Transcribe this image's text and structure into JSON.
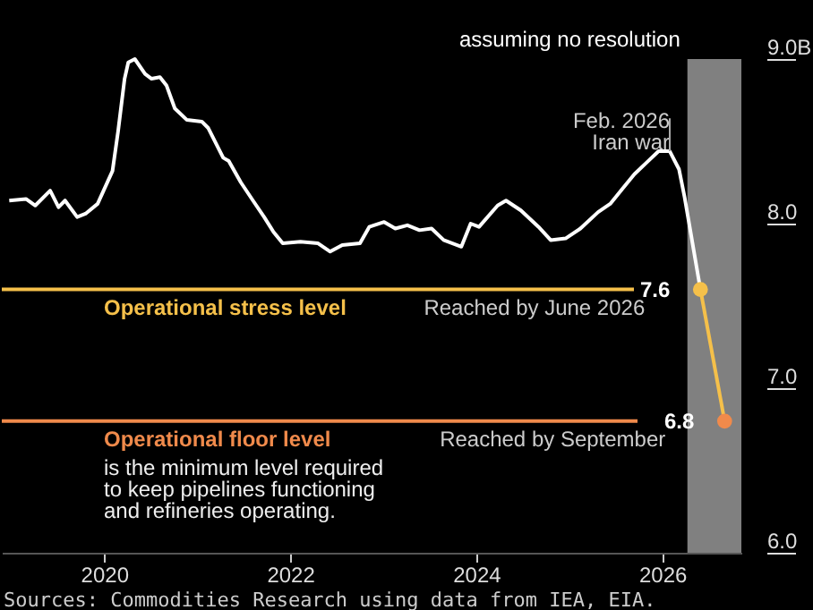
{
  "chart_data": {
    "type": "line",
    "series": [
      {
        "color": "#ffffff",
        "x": [
          2018.98,
          2019.16,
          2019.26,
          2019.42,
          2019.51,
          2019.58,
          2019.71,
          2019.8,
          2019.93,
          2020.09,
          2020.15,
          2020.22,
          2020.26,
          2020.33,
          2020.44,
          2020.51,
          2020.6,
          2020.67,
          2020.76,
          2020.89,
          2021.05,
          2021.12,
          2021.28,
          2021.34,
          2021.47,
          2021.6,
          2021.72,
          2021.82,
          2021.92,
          2022.11,
          2022.3,
          2022.43,
          2022.56,
          2022.75,
          2022.85,
          2023.01,
          2023.13,
          2023.26,
          2023.39,
          2023.52,
          2023.65,
          2023.84,
          2023.94,
          2024.03,
          2024.23,
          2024.32,
          2024.48,
          2024.67,
          2024.8,
          2024.96,
          2025.12,
          2025.31,
          2025.44,
          2025.57,
          2025.7,
          2025.83,
          2025.96,
          2026.08,
          2026.18,
          2026.24,
          2026.41
        ],
        "values": [
          8.14,
          8.15,
          8.11,
          8.2,
          8.1,
          8.14,
          8.04,
          8.06,
          8.12,
          8.32,
          8.56,
          8.88,
          8.98,
          9.0,
          8.91,
          8.88,
          8.89,
          8.84,
          8.7,
          8.63,
          8.62,
          8.58,
          8.4,
          8.38,
          8.25,
          8.14,
          8.04,
          7.95,
          7.88,
          7.89,
          7.88,
          7.83,
          7.87,
          7.88,
          7.98,
          8.01,
          7.97,
          7.99,
          7.96,
          7.97,
          7.9,
          7.86,
          8.0,
          7.98,
          8.11,
          8.14,
          8.08,
          7.98,
          7.9,
          7.91,
          7.97,
          8.07,
          8.12,
          8.21,
          8.3,
          8.37,
          8.44,
          8.44,
          8.33,
          8.16,
          7.6
        ]
      },
      {
        "color": "#f5c04a",
        "marker": "circle",
        "x": [
          2026.41,
          2026.67
        ],
        "values": [
          7.6,
          6.8
        ],
        "colors": [
          "#f5c04a",
          "#f08a4b"
        ],
        "value_labels": [
          "7.6",
          "6.8"
        ]
      }
    ],
    "xlim": [
      2018.9,
      2026.85
    ],
    "xticks": [
      2020,
      2022,
      2024,
      2026
    ],
    "ylim": [
      6,
      9
    ],
    "yticks": [
      {
        "value": 6,
        "label": "6.0"
      },
      {
        "value": 7,
        "label": "7.0"
      },
      {
        "value": 8,
        "label": "8.0"
      },
      {
        "value": 9,
        "label": "9.0B"
      }
    ],
    "ref_lines": [
      {
        "axis": "y",
        "value": 7.6,
        "label": "Operational stress level",
        "color": "#f5c04a"
      },
      {
        "axis": "y",
        "value": 6.8,
        "label": "Operational floor level",
        "color": "#f08a4b"
      }
    ],
    "bands": [
      {
        "axis": "x",
        "from": 2026.27,
        "to": 2026.85,
        "label": "assuming no resolution",
        "color": "#808080"
      }
    ],
    "annotations": [
      {
        "text": "Feb. 2026\nIran war",
        "x": 2026.08,
        "y": 8.44
      },
      {
        "text": "Reached by June 2026",
        "x": 2026.41,
        "y": 7.6
      },
      {
        "text": "Reached by September",
        "x": 2026.67,
        "y": 6.8
      },
      "is the minimum level required\nto keep pipelines functioning\nand refineries operating.",
      "Sources: Commodities Research using data from IEA, EIA."
    ],
    "grid": false
  }
}
